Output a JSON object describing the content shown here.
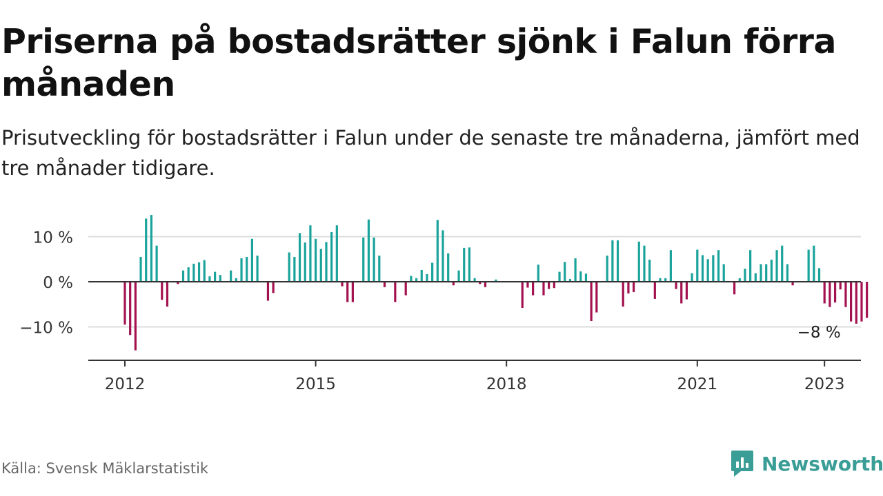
{
  "title": "Priserna på bostadsrätter sjönk i Falun förra månaden",
  "subtitle": "Prisutveckling för bostadsrätter i Falun under de senaste tre månaderna, jämfört med tre månader tidigare.",
  "source": "Källa: Svensk Mäklarstatistik",
  "brand": {
    "name": "Newsworthy",
    "icon": "newsworthy-logo-icon"
  },
  "colors": {
    "positive": "#1aa39b",
    "negative": "#a3124f",
    "axis": "#333333",
    "grid": "#dddddd",
    "brand": "#3a9d96"
  },
  "chart_data": {
    "type": "bar",
    "title": "",
    "xlabel": "",
    "ylabel": "",
    "ylim": [
      -18,
      15
    ],
    "y_unit": "%",
    "yticks": [
      {
        "value": 10,
        "label": "10 %"
      },
      {
        "value": 0,
        "label": "0 %"
      },
      {
        "value": -10,
        "label": "−10 %"
      }
    ],
    "xticks": [
      {
        "value": 2012,
        "label": "2012"
      },
      {
        "value": 2015,
        "label": "2015"
      },
      {
        "value": 2018,
        "label": "2018"
      },
      {
        "value": 2021,
        "label": "2021"
      },
      {
        "value": 2023,
        "label": "2023"
      }
    ],
    "x_start": "2012-01",
    "x_end": "2023-01",
    "grid": true,
    "annotation": {
      "x": "2023-01",
      "value": -8,
      "label": "−8 %"
    },
    "series": [
      {
        "values": [
          -9.5,
          -11.8,
          -15.2,
          5.5,
          14,
          14.8,
          8,
          -4,
          -5.5,
          0,
          -0.5,
          2.5,
          3.2,
          4,
          4.3,
          4.8,
          1.2,
          2.2,
          1.5,
          0,
          2.5,
          0.8,
          5.2,
          5.5,
          9.5,
          5.8,
          0,
          -4.2,
          -2.5,
          0,
          0,
          6.5,
          5.5,
          10.8,
          8.7,
          12.5,
          9.5,
          7.3,
          8.8,
          11,
          12.5,
          -1,
          -4.5,
          -4.5,
          0,
          9.8,
          13.8,
          9.8,
          5.8,
          -1.2,
          0,
          -4.5,
          0,
          -3,
          1.3,
          0.8,
          2.6,
          1.7,
          4.2,
          13.7,
          11.4,
          6.3,
          -0.8,
          2.5,
          7.5,
          7.6,
          0.8,
          -0.5,
          -1.2,
          0,
          0.5,
          0,
          0,
          0,
          0,
          -5.8,
          -1.3,
          -3,
          3.8,
          -3,
          -1.6,
          -1.4,
          2.2,
          4.4,
          0.6,
          5.2,
          2.3,
          1.8,
          -8.7,
          -6.8,
          0,
          5.8,
          9.2,
          9.2,
          -5.5,
          -2.6,
          -2.3,
          8.9,
          8,
          4.9,
          -3.8,
          0.8,
          0.8,
          7,
          -1.6,
          -4.8,
          -3.9,
          1.9,
          7.1,
          5.9,
          5,
          5.9,
          7,
          3.9,
          0,
          -2.8,
          0.8,
          2.9,
          7,
          1.9,
          3.9,
          3.9,
          4.9,
          7,
          8,
          3.9,
          -0.8,
          0,
          0,
          7.1,
          8,
          3,
          -4.8,
          -5.6,
          -4.6,
          -1.7,
          -5.6,
          -8.8,
          -9.3,
          -8.8,
          -8
        ]
      }
    ]
  }
}
